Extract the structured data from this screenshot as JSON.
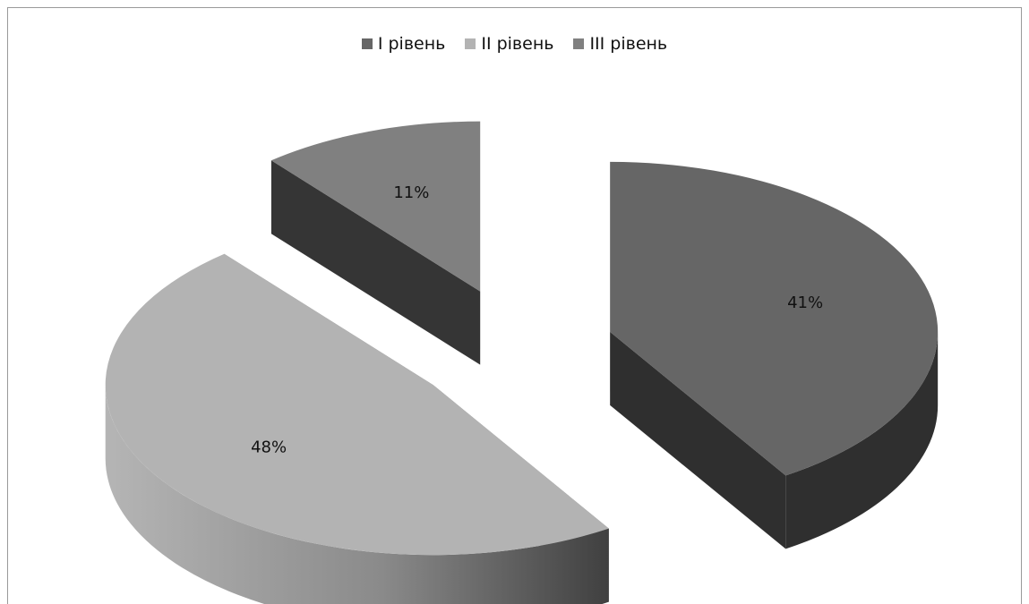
{
  "chart_data": {
    "type": "pie",
    "title": "",
    "categories": [
      "І рівень",
      "ІІ рівень",
      "ІІІ рівень"
    ],
    "values": [
      41,
      48,
      11
    ],
    "labels": [
      "41%",
      "48%",
      "11%"
    ],
    "legend_position": "top",
    "style": "3d-exploded",
    "colors": {
      "top": [
        "#666666",
        "#b3b3b3",
        "#808080"
      ],
      "side": [
        "#2f2f2f",
        "#7a7a7a",
        "#353535"
      ]
    }
  }
}
